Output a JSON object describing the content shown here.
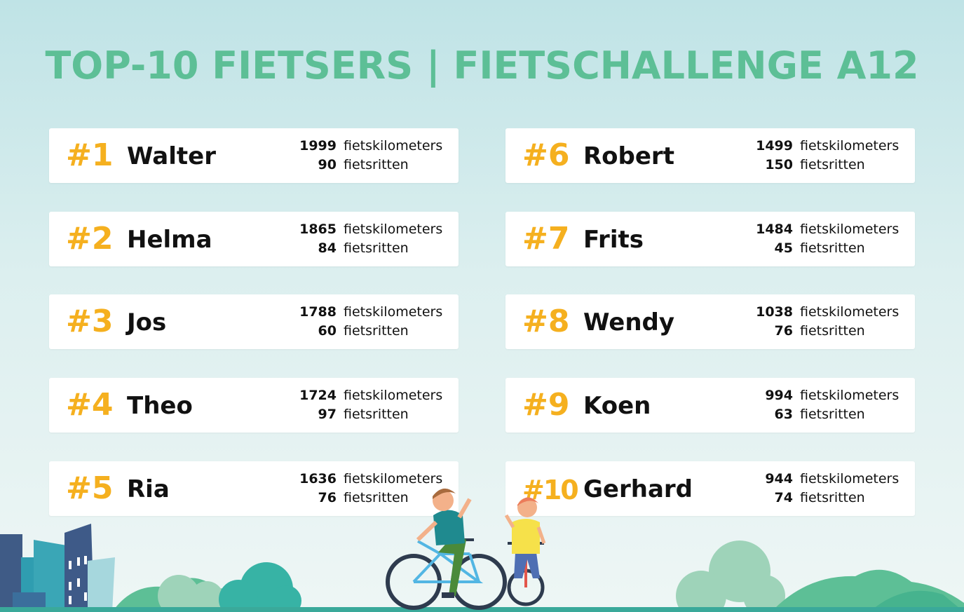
{
  "title": "TOP-10 FIETSERS | FIETSCHALLENGE A12",
  "colors": {
    "title": "#5dbf96",
    "rank": "#f5b01f",
    "card": "#ffffff",
    "text": "#111111"
  },
  "unit_km": "fietskilometers",
  "unit_rides": "fietsritten",
  "riders": [
    {
      "rank": "#1",
      "name": "Walter",
      "km": "1999",
      "rides": "90"
    },
    {
      "rank": "#2",
      "name": "Helma",
      "km": "1865",
      "rides": "84"
    },
    {
      "rank": "#3",
      "name": "Jos",
      "km": "1788",
      "rides": "60"
    },
    {
      "rank": "#4",
      "name": "Theo",
      "km": "1724",
      "rides": "97"
    },
    {
      "rank": "#5",
      "name": "Ria",
      "km": "1636",
      "rides": "76"
    },
    {
      "rank": "#6",
      "name": "Robert",
      "km": "1499",
      "rides": "150"
    },
    {
      "rank": "#7",
      "name": "Frits",
      "km": "1484",
      "rides": "45"
    },
    {
      "rank": "#8",
      "name": "Wendy",
      "km": "1038",
      "rides": "76"
    },
    {
      "rank": "#9",
      "name": "Koen",
      "km": "994",
      "rides": "63"
    },
    {
      "rank": "#10",
      "name": "Gerhard",
      "km": "944",
      "rides": "74"
    }
  ],
  "illustration": {
    "icons": [
      "city-buildings-icon",
      "bushes-icon",
      "cyclist-adult-icon",
      "cyclist-child-icon"
    ]
  }
}
